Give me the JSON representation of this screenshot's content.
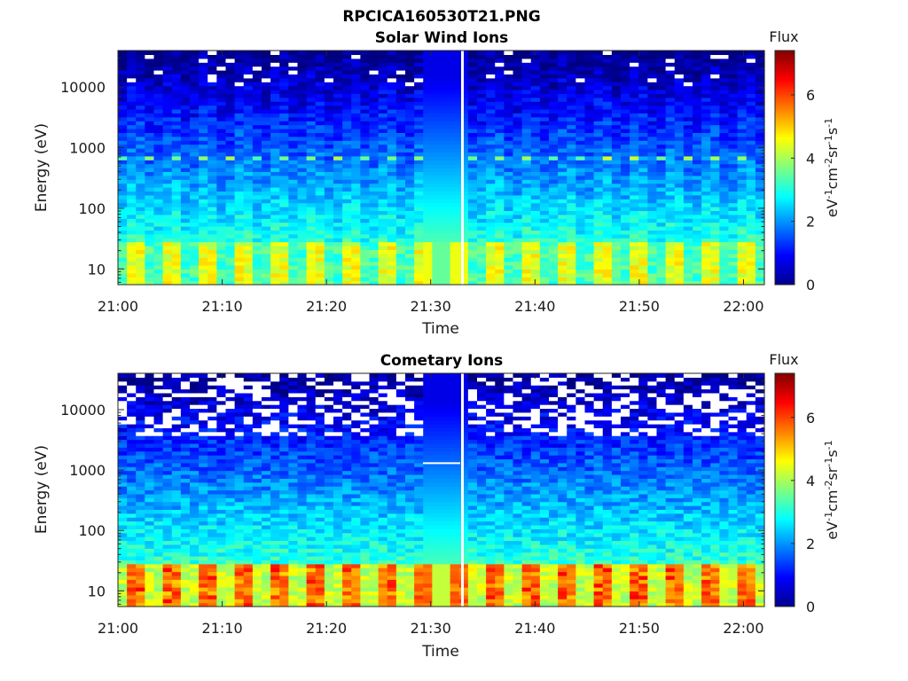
{
  "figure_title": "RPCICA160530T21.PNG",
  "colorbar": {
    "label": "Flux",
    "unit_parts": [
      "eV",
      "-1",
      "cm",
      "-2",
      "sr",
      "-1",
      "s",
      "-1"
    ],
    "ticks": [
      "0",
      "2",
      "4",
      "6"
    ],
    "range": [
      0,
      7.4
    ],
    "colormap": "jet"
  },
  "chart_data": [
    {
      "type": "heatmap",
      "title": "Solar Wind Ions",
      "xlabel": "Time",
      "ylabel": "Energy (eV)",
      "x_ticks": [
        "21:00",
        "21:10",
        "21:20",
        "21:30",
        "21:40",
        "21:50",
        "22:00"
      ],
      "x_range": [
        "21:00",
        "22:02"
      ],
      "y_ticks": [
        "10",
        "100",
        "1000",
        "10000"
      ],
      "y_scale": "log",
      "y_range": [
        5.5,
        40000
      ],
      "gap_at": "21:33",
      "z_range": [
        0,
        7.4
      ],
      "colorbar_label": "Flux",
      "description_of_values": [
        {
          "energy": 10,
          "flux_min": 3.0,
          "flux_max": 4.6
        },
        {
          "energy": 100,
          "flux": 2.8
        },
        {
          "energy": 650,
          "flux_peak": 3.8
        },
        {
          "energy": 1000,
          "flux": 2.0
        },
        {
          "energy": 10000,
          "flux": 1.1
        },
        {
          "energy": 35000,
          "flux": 0.8
        }
      ]
    },
    {
      "type": "heatmap",
      "title": "Cometary Ions",
      "xlabel": "Time",
      "ylabel": "Energy (eV)",
      "x_ticks": [
        "21:00",
        "21:10",
        "21:20",
        "21:30",
        "21:40",
        "21:50",
        "22:00"
      ],
      "x_range": [
        "21:00",
        "22:02"
      ],
      "y_ticks": [
        "10",
        "100",
        "1000",
        "10000"
      ],
      "y_scale": "log",
      "y_range": [
        5.5,
        40000
      ],
      "gap_at": "21:33",
      "z_range": [
        0,
        7.4
      ],
      "colorbar_label": "Flux",
      "description_of_values": [
        {
          "energy": 10,
          "flux_min": 4.5,
          "flux_max": 6.2
        },
        {
          "energy": 100,
          "flux": 2.6
        },
        {
          "energy": 1000,
          "flux": 1.3
        },
        {
          "energy": 10000,
          "flux": 0.7
        },
        {
          "energy": 35000,
          "flux": 0.5
        }
      ]
    }
  ]
}
